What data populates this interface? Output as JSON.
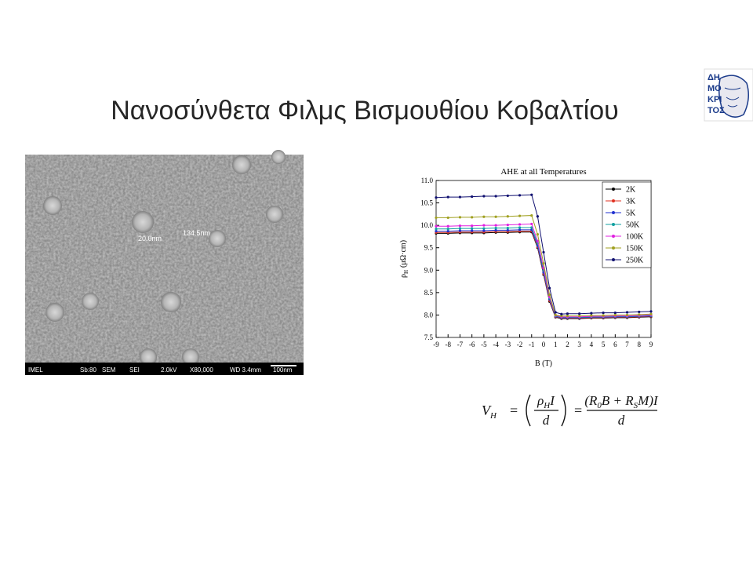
{
  "slide": {
    "title": "Νανοσύνθετα Φιλμς Βισμουθίου Κοβαλτίου"
  },
  "logo": {
    "lines": [
      "ΔΗ",
      "ΜΟ",
      "ΚΡΙ",
      "ΤΟΣ"
    ]
  },
  "sem_image": {
    "measurements": [
      "134.5nm",
      "20.0nm"
    ],
    "info_bar": [
      "IMEL",
      "Sb:80",
      "SEM",
      "SEI",
      "2.0kV",
      "X80,000",
      "WD 3.4mm",
      "100nm"
    ]
  },
  "chart_data": {
    "type": "line",
    "title": "AHE at all Temperatures",
    "x_label": "B (T)",
    "y_label": "ρ",
    "y_label_sub": "H",
    "y_label_unit": "(μΩ·cm)",
    "x": [
      -9,
      -8,
      -7,
      -6,
      -5,
      -4,
      -3,
      -2,
      -1,
      -0.5,
      0,
      0.5,
      1,
      1.5,
      2,
      3,
      4,
      5,
      6,
      7,
      8,
      9
    ],
    "series": [
      {
        "name": "2K",
        "color": "#000000",
        "values": [
          9.82,
          9.82,
          9.83,
          9.83,
          9.83,
          9.84,
          9.84,
          9.85,
          9.85,
          9.5,
          8.9,
          8.3,
          7.95,
          7.92,
          7.92,
          7.92,
          7.93,
          7.93,
          7.94,
          7.94,
          7.95,
          7.96
        ]
      },
      {
        "name": "3K",
        "color": "#e03020",
        "values": [
          9.84,
          9.84,
          9.85,
          9.85,
          9.85,
          9.86,
          9.86,
          9.87,
          9.87,
          9.52,
          8.92,
          8.32,
          7.96,
          7.93,
          7.93,
          7.93,
          7.94,
          7.94,
          7.95,
          7.95,
          7.96,
          7.97
        ]
      },
      {
        "name": "5K",
        "color": "#2030d0",
        "values": [
          9.87,
          9.87,
          9.88,
          9.88,
          9.88,
          9.89,
          9.89,
          9.9,
          9.9,
          9.55,
          8.95,
          8.35,
          7.97,
          7.94,
          7.94,
          7.94,
          7.95,
          7.95,
          7.96,
          7.96,
          7.97,
          7.98
        ]
      },
      {
        "name": "50K",
        "color": "#10a0a0",
        "values": [
          9.92,
          9.92,
          9.93,
          9.93,
          9.93,
          9.94,
          9.94,
          9.95,
          9.95,
          9.6,
          9.0,
          8.38,
          7.98,
          7.95,
          7.95,
          7.95,
          7.96,
          7.96,
          7.97,
          7.97,
          7.98,
          7.99
        ]
      },
      {
        "name": "100K",
        "color": "#e020e0",
        "values": [
          9.98,
          9.98,
          9.99,
          9.99,
          10.0,
          10.0,
          10.01,
          10.02,
          10.03,
          9.65,
          9.05,
          8.4,
          7.99,
          7.96,
          7.96,
          7.96,
          7.97,
          7.97,
          7.98,
          7.98,
          7.99,
          8.0
        ]
      },
      {
        "name": "150K",
        "color": "#a0a020",
        "values": [
          10.17,
          10.17,
          10.18,
          10.18,
          10.19,
          10.19,
          10.2,
          10.21,
          10.22,
          9.8,
          9.15,
          8.45,
          8.0,
          7.98,
          7.98,
          7.98,
          7.99,
          7.99,
          8.0,
          8.0,
          8.01,
          8.02
        ]
      },
      {
        "name": "250K",
        "color": "#101070",
        "values": [
          10.62,
          10.63,
          10.63,
          10.64,
          10.65,
          10.65,
          10.66,
          10.67,
          10.68,
          10.2,
          9.4,
          8.6,
          8.06,
          8.02,
          8.03,
          8.03,
          8.04,
          8.05,
          8.05,
          8.06,
          8.07,
          8.08
        ]
      }
    ],
    "xlim": [
      -9,
      9
    ],
    "ylim": [
      7.5,
      11
    ],
    "xticks": [
      -9,
      -8,
      -7,
      -6,
      -5,
      -4,
      -3,
      -2,
      -1,
      0,
      1,
      2,
      3,
      4,
      5,
      6,
      7,
      8,
      9
    ],
    "yticks": [
      7.5,
      {
        "value": 8,
        "label": "8.0"
      },
      8.5,
      {
        "value": 9,
        "label": "9.0"
      },
      9.5,
      {
        "value": 10,
        "label": "10.0"
      },
      10.5,
      {
        "value": 11,
        "label": "11.0"
      }
    ],
    "legend": "upper right",
    "markers": true
  },
  "formula": {
    "lhs": "V",
    "lhs_sub": "H",
    "equals": "=",
    "frac1_num": [
      "ρ",
      "H",
      "I"
    ],
    "frac1_den": "d",
    "frac2_num": [
      "(R",
      "0",
      "B + R",
      "S",
      "M)I"
    ],
    "frac2_den": "d"
  }
}
